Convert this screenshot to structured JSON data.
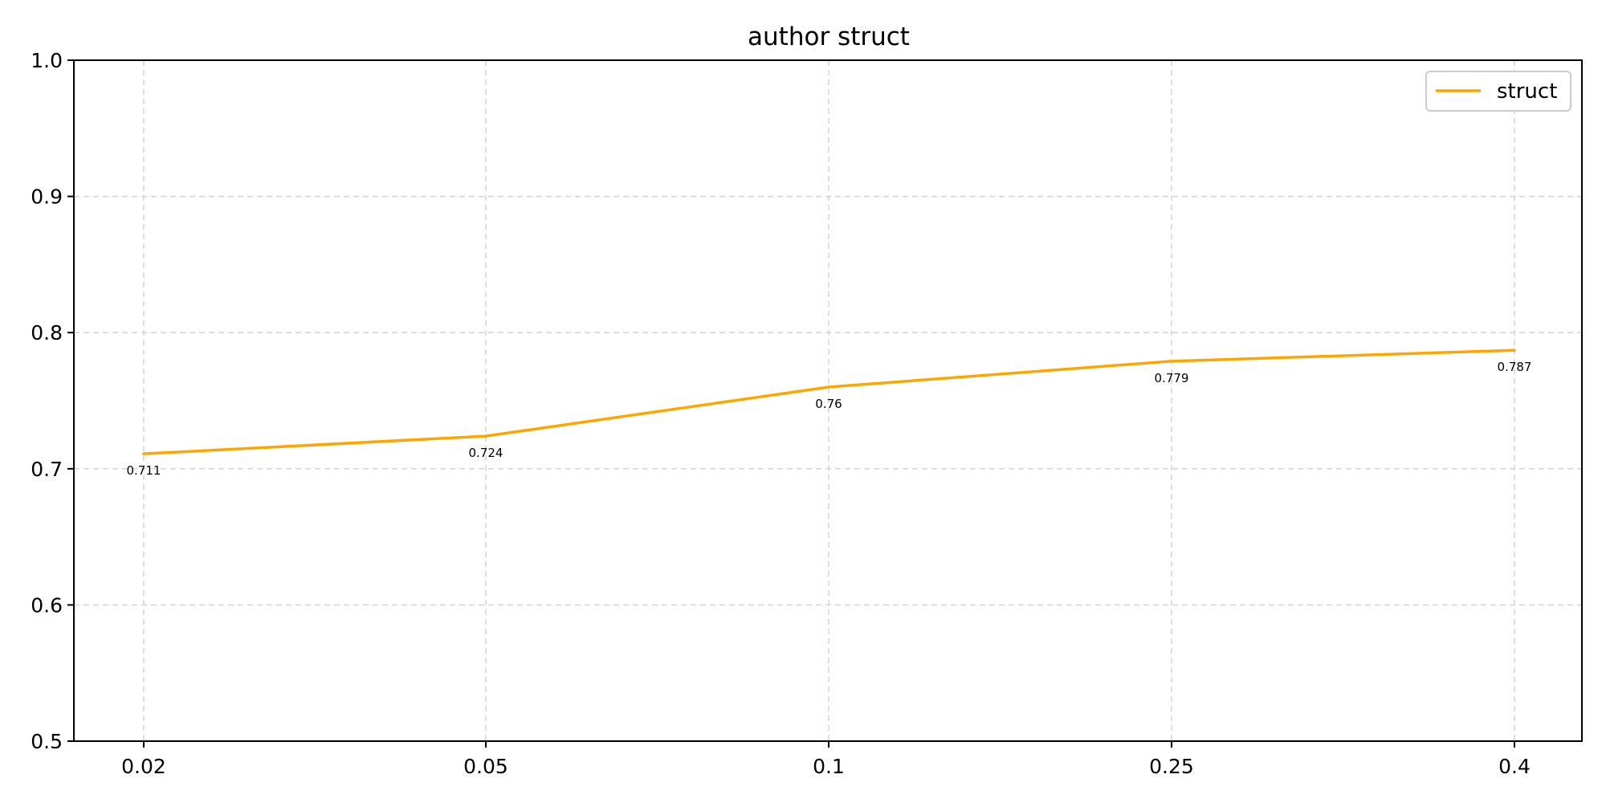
{
  "chart_data": {
    "type": "line",
    "title": "author struct",
    "xlabel": "",
    "ylabel": "",
    "categories": [
      "0.02",
      "0.05",
      "0.1",
      "0.25",
      "0.4"
    ],
    "series": [
      {
        "name": "struct",
        "color": "#FFA500",
        "values": [
          0.711,
          0.724,
          0.76,
          0.779,
          0.787
        ],
        "labels": [
          "0.711",
          "0.724",
          "0.76",
          "0.779",
          "0.787"
        ]
      }
    ],
    "ylim": [
      0.5,
      1.0
    ],
    "yticks": [
      "0.5",
      "0.6",
      "0.7",
      "0.8",
      "0.9",
      "1.0"
    ],
    "grid": true,
    "legend_position": "top-right"
  }
}
